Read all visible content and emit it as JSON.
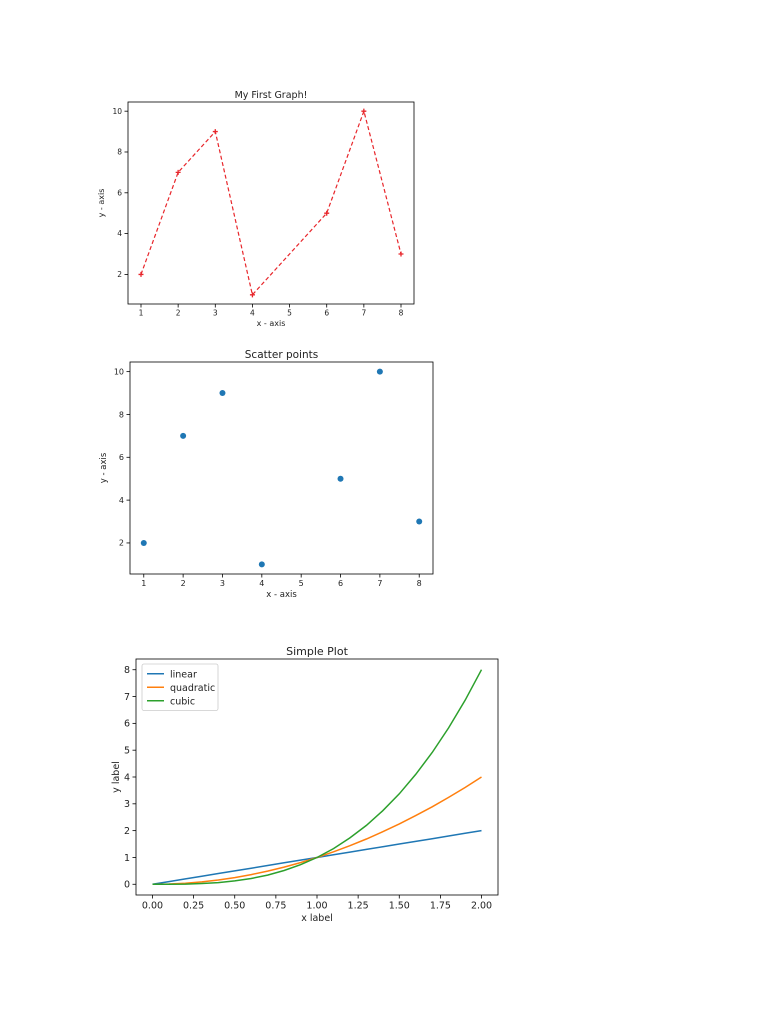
{
  "chart_data": [
    {
      "type": "line",
      "title": "My First Graph!",
      "xlabel": "x - axis",
      "ylabel": "y - axis",
      "x": [
        1,
        2,
        3,
        4,
        6,
        7,
        8
      ],
      "series": [
        {
          "values": [
            2,
            7,
            9,
            1,
            5,
            10,
            3
          ],
          "color": "#e8262b",
          "style": "dashed",
          "marker": "+"
        }
      ],
      "xticks": [
        1,
        2,
        3,
        4,
        5,
        6,
        7,
        8
      ],
      "yticks": [
        2,
        4,
        6,
        8,
        10
      ],
      "xlim": [
        0.65,
        8.35
      ],
      "ylim": [
        0.55,
        10.45
      ],
      "grid": false
    },
    {
      "type": "scatter",
      "title": "Scatter points",
      "xlabel": "x - axis",
      "ylabel": "y - axis",
      "x": [
        1,
        2,
        3,
        4,
        6,
        7,
        8
      ],
      "series": [
        {
          "values": [
            2,
            7,
            9,
            1,
            5,
            10,
            3
          ],
          "color": "#1f77b4",
          "marker": "o"
        }
      ],
      "xticks": [
        1,
        2,
        3,
        4,
        5,
        6,
        7,
        8
      ],
      "yticks": [
        2,
        4,
        6,
        8,
        10
      ],
      "xlim": [
        0.65,
        8.35
      ],
      "ylim": [
        0.55,
        10.45
      ],
      "grid": false
    },
    {
      "type": "line",
      "title": "Simple Plot",
      "xlabel": "x label",
      "ylabel": "y label",
      "x": [
        0,
        0.1,
        0.2,
        0.3,
        0.4,
        0.5,
        0.6,
        0.7,
        0.8,
        0.9,
        1.0,
        1.1,
        1.2,
        1.3,
        1.4,
        1.5,
        1.6,
        1.7,
        1.8,
        1.9,
        2.0
      ],
      "series": [
        {
          "name": "linear",
          "color": "#1f77b4",
          "values": [
            0,
            0.1,
            0.2,
            0.3,
            0.4,
            0.5,
            0.6,
            0.7,
            0.8,
            0.9,
            1.0,
            1.1,
            1.2,
            1.3,
            1.4,
            1.5,
            1.6,
            1.7,
            1.8,
            1.9,
            2.0
          ]
        },
        {
          "name": "quadratic",
          "color": "#ff7f0e",
          "values": [
            0,
            0.01,
            0.04,
            0.09,
            0.16,
            0.25,
            0.36,
            0.49,
            0.64,
            0.81,
            1.0,
            1.21,
            1.44,
            1.69,
            1.96,
            2.25,
            2.56,
            2.89,
            3.24,
            3.61,
            4.0
          ]
        },
        {
          "name": "cubic",
          "color": "#2ca02c",
          "values": [
            0,
            0.001,
            0.008,
            0.027,
            0.064,
            0.125,
            0.216,
            0.343,
            0.512,
            0.729,
            1.0,
            1.331,
            1.728,
            2.197,
            2.744,
            3.375,
            4.096,
            4.913,
            5.832,
            6.859,
            8.0
          ]
        }
      ],
      "xticks": [
        "0.00",
        "0.25",
        "0.50",
        "0.75",
        "1.00",
        "1.25",
        "1.50",
        "1.75",
        "2.00"
      ],
      "yticks": [
        0,
        1,
        2,
        3,
        4,
        5,
        6,
        7,
        8
      ],
      "xlim": [
        -0.1,
        2.1
      ],
      "ylim": [
        -0.4,
        8.4
      ],
      "legend": "top-left",
      "grid": false
    }
  ]
}
